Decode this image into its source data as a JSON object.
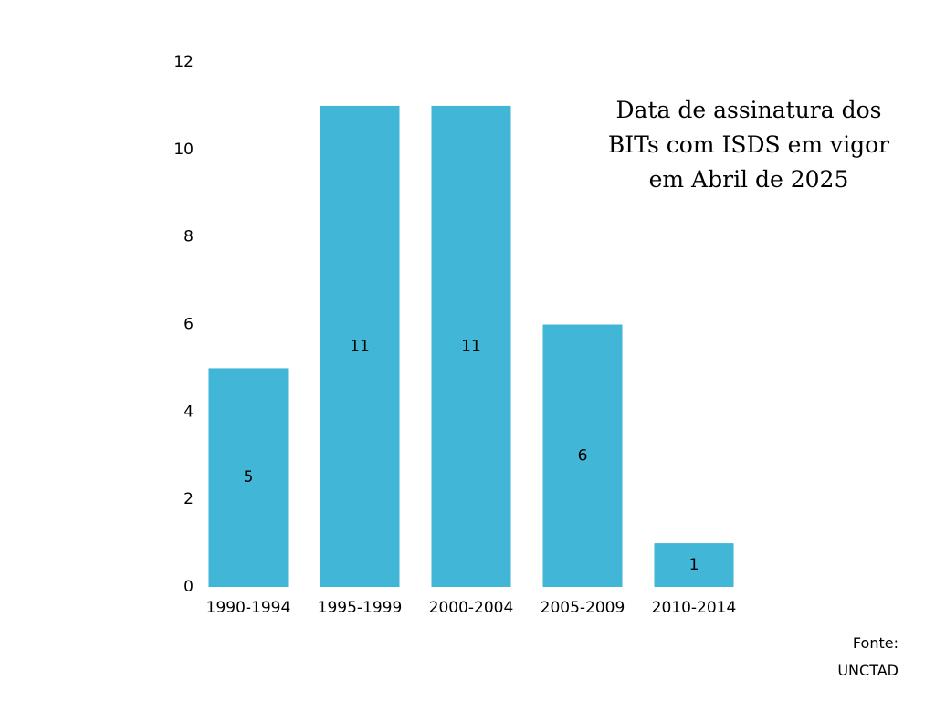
{
  "chart_data": {
    "type": "bar",
    "title_lines": [
      "Data de assinatura dos",
      "BITs com ISDS em vigor",
      "em Abril de 2025"
    ],
    "categories": [
      "1990-1994",
      "1995-1999",
      "2000-2004",
      "2005-2009",
      "2010-2014"
    ],
    "values": [
      5,
      11,
      11,
      6,
      1
    ],
    "ylim": [
      0,
      12
    ],
    "yticks": [
      0,
      2,
      4,
      6,
      8,
      10,
      12
    ],
    "xlabel": "",
    "ylabel": "",
    "grid": false,
    "legend": "none",
    "bar_color": "#41B6D6"
  },
  "source": {
    "line1": "Fonte:",
    "line2": "UNCTAD"
  }
}
